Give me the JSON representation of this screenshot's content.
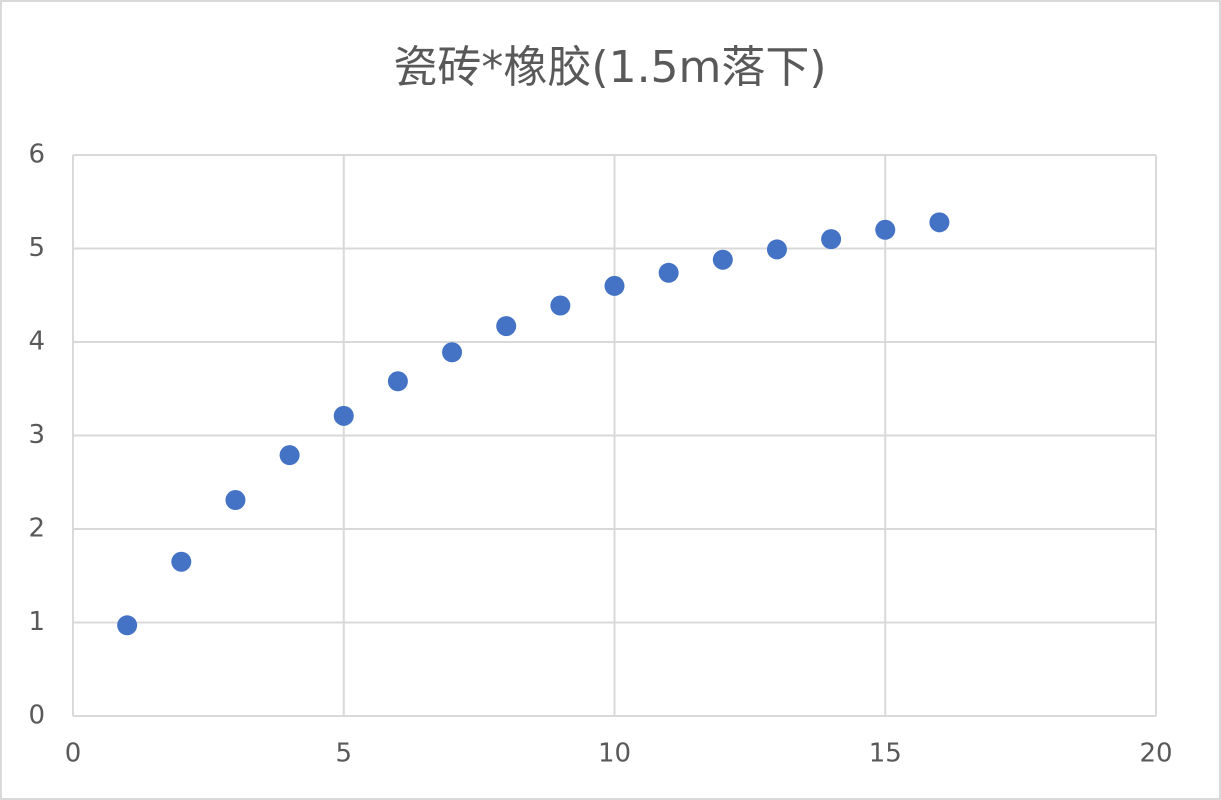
{
  "chart_data": {
    "type": "scatter",
    "title": "瓷砖*橡胶(1.5m落下)",
    "x": [
      1,
      2,
      3,
      4,
      5,
      6,
      7,
      8,
      9,
      10,
      11,
      12,
      13,
      14,
      15,
      16
    ],
    "series": [
      {
        "color": "#4472c4",
        "values": [
          0.97,
          1.65,
          2.31,
          2.79,
          3.21,
          3.58,
          3.89,
          4.17,
          4.39,
          4.6,
          4.74,
          4.88,
          4.99,
          5.1,
          5.2,
          5.28
        ]
      }
    ],
    "xlim": [
      0,
      20
    ],
    "xticks": [
      0,
      5,
      10,
      15,
      20
    ],
    "ylim": [
      0,
      6
    ],
    "yticks": [
      0,
      1,
      2,
      3,
      4,
      5,
      6
    ],
    "grid": true
  }
}
